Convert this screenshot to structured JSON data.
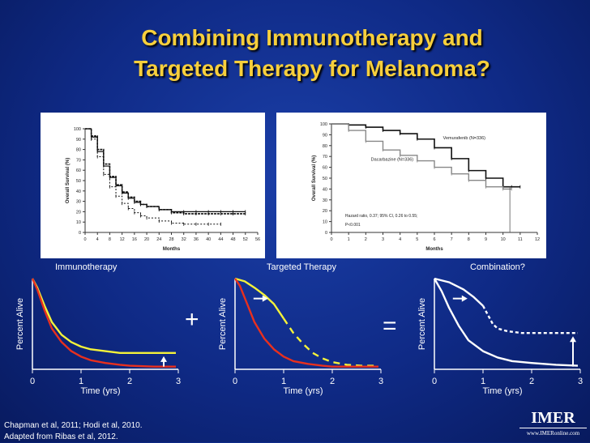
{
  "title": {
    "line1": "Combining Immunotherapy and",
    "line2": "Targeted Therapy for Melanoma?"
  },
  "colors": {
    "title": "#f7cf3c",
    "yellow_curve": "#f4f23a",
    "red_curve": "#e8301e",
    "white_curve": "#ffffff"
  },
  "operators": {
    "plus": "+",
    "equals": "="
  },
  "footnote": {
    "line1": "Chapman et al, 2011; Hodi et al, 2010.",
    "line2": "Adapted from Ribas et al, 2012."
  },
  "logo": {
    "brand": "IMER",
    "url": "www.IMERonline.com"
  },
  "chart_data": [
    {
      "type": "line",
      "id": "immunotherapy-km",
      "xlabel": "Months",
      "ylabel": "Overall Survival (%)",
      "xlim": [
        0,
        56
      ],
      "ylim": [
        0,
        100
      ],
      "xticks": [
        0,
        4,
        8,
        12,
        16,
        20,
        24,
        28,
        32,
        36,
        40,
        44,
        48,
        52,
        56
      ],
      "yticks": [
        0,
        10,
        20,
        30,
        40,
        50,
        60,
        70,
        80,
        90,
        100
      ],
      "series": [
        {
          "x": [
            0,
            2,
            4,
            6,
            8,
            10,
            12,
            14,
            16,
            18,
            20,
            24,
            28,
            32,
            36,
            40,
            44,
            48,
            52
          ],
          "y": [
            100,
            92,
            78,
            64,
            53,
            45,
            38,
            33,
            29,
            27,
            25,
            22,
            20,
            20,
            20,
            20,
            20,
            20,
            20
          ]
        },
        {
          "x": [
            0,
            2,
            4,
            6,
            8,
            10,
            12,
            14,
            16,
            18,
            20,
            24,
            28,
            32,
            36,
            40,
            44,
            48,
            52
          ],
          "y": [
            100,
            93,
            80,
            66,
            54,
            46,
            39,
            34,
            30,
            27,
            25,
            22,
            19,
            18,
            18,
            18,
            18,
            18,
            18
          ]
        },
        {
          "x": [
            0,
            2,
            4,
            6,
            8,
            10,
            12,
            14,
            16,
            18,
            20,
            24,
            28,
            32,
            36,
            40,
            44
          ],
          "y": [
            100,
            90,
            73,
            56,
            44,
            35,
            28,
            23,
            19,
            16,
            14,
            11,
            9,
            8,
            8,
            8,
            8
          ]
        }
      ]
    },
    {
      "type": "line",
      "id": "targeted-km",
      "xlabel": "Months",
      "ylabel": "Overall Survival (%)",
      "xlim": [
        0,
        12
      ],
      "ylim": [
        0,
        100
      ],
      "xticks": [
        0,
        1,
        2,
        3,
        4,
        5,
        6,
        7,
        8,
        9,
        10,
        11,
        12
      ],
      "yticks": [
        0,
        10,
        20,
        30,
        40,
        50,
        60,
        70,
        80,
        90,
        100
      ],
      "annotations": [
        "Vemurafenib (N=336)",
        "Dacarbazine (N=336)",
        "Hazard ratio, 0.37; 95% CI, 0.26 to 0.55;",
        "P<0.001"
      ],
      "series": [
        {
          "name": "Vemurafenib (N=336)",
          "x": [
            0,
            1,
            2,
            3,
            4,
            5,
            6,
            7,
            8,
            9,
            10,
            10.5,
            11
          ],
          "y": [
            100,
            99,
            97,
            94,
            91,
            86,
            78,
            68,
            57,
            50,
            42,
            42,
            42
          ]
        },
        {
          "name": "Dacarbazine (N=336)",
          "x": [
            0,
            1,
            2,
            3,
            4,
            5,
            6,
            7,
            8,
            9,
            10,
            10.5
          ],
          "y": [
            100,
            94,
            84,
            76,
            71,
            66,
            60,
            54,
            48,
            42,
            40,
            40
          ]
        }
      ]
    },
    {
      "type": "line",
      "id": "schematic-immunotherapy",
      "title": "Immunotherapy",
      "xlabel": "Time (yrs)",
      "ylabel": "Percent Alive",
      "xlim": [
        0,
        3
      ],
      "ylim": [
        0,
        100
      ],
      "xticks": [
        0,
        1,
        2,
        3
      ],
      "series": [
        {
          "color": "yellow",
          "x": [
            0,
            0.1,
            0.25,
            0.4,
            0.6,
            0.8,
            1.0,
            1.2,
            1.5,
            1.8,
            2.0,
            2.5,
            2.95
          ],
          "y": [
            100,
            90,
            70,
            52,
            38,
            30,
            25,
            22,
            20,
            18,
            18,
            18,
            18
          ]
        },
        {
          "color": "red",
          "x": [
            0,
            0.1,
            0.25,
            0.4,
            0.6,
            0.8,
            1.0,
            1.2,
            1.5,
            1.8,
            2.0,
            2.5,
            2.95
          ],
          "y": [
            100,
            88,
            65,
            45,
            30,
            20,
            14,
            10,
            7,
            5,
            4,
            3,
            3
          ]
        }
      ]
    },
    {
      "type": "line",
      "id": "schematic-targeted",
      "title": "Targeted Therapy",
      "xlabel": "Time (yrs)",
      "ylabel": "Percent Alive",
      "xlim": [
        0,
        3
      ],
      "ylim": [
        0,
        100
      ],
      "xticks": [
        0,
        1,
        2,
        3
      ],
      "series": [
        {
          "color": "yellow",
          "x": [
            0,
            0.2,
            0.4,
            0.6,
            0.8,
            1.0
          ],
          "y": [
            100,
            97,
            90,
            82,
            72,
            56
          ]
        },
        {
          "color": "yellow",
          "style": "dashed",
          "x": [
            1.0,
            1.2,
            1.4,
            1.6,
            1.8,
            2.0,
            2.3,
            2.6,
            2.95
          ],
          "y": [
            56,
            40,
            28,
            18,
            12,
            8,
            5,
            4,
            4
          ]
        },
        {
          "color": "red",
          "x": [
            0,
            0.1,
            0.25,
            0.4,
            0.6,
            0.8,
            1.0,
            1.2,
            1.5,
            1.8,
            2.0,
            2.5,
            2.95
          ],
          "y": [
            100,
            92,
            72,
            52,
            34,
            22,
            14,
            9,
            6,
            4,
            3,
            3,
            3
          ]
        }
      ]
    },
    {
      "type": "line",
      "id": "schematic-combination",
      "title": "Combination?",
      "xlabel": "Time (yrs)",
      "ylabel": "Percent Alive",
      "xlim": [
        0,
        3
      ],
      "ylim": [
        0,
        100
      ],
      "xticks": [
        0,
        1,
        2,
        3
      ],
      "series": [
        {
          "color": "white",
          "x": [
            0,
            0.3,
            0.6,
            0.8,
            1.0
          ],
          "y": [
            100,
            96,
            88,
            80,
            70
          ]
        },
        {
          "color": "white",
          "style": "dotted",
          "x": [
            1.0,
            1.1,
            1.2,
            1.3,
            1.5,
            1.8,
            2.2,
            2.6,
            2.95
          ],
          "y": [
            70,
            60,
            50,
            45,
            42,
            40,
            40,
            40,
            40
          ]
        },
        {
          "color": "white",
          "x": [
            0,
            0.15,
            0.3,
            0.5,
            0.7,
            1.0,
            1.3,
            1.6,
            2.0,
            2.5,
            2.95
          ],
          "y": [
            100,
            86,
            68,
            48,
            32,
            20,
            13,
            9,
            7,
            5,
            4
          ]
        }
      ]
    }
  ]
}
